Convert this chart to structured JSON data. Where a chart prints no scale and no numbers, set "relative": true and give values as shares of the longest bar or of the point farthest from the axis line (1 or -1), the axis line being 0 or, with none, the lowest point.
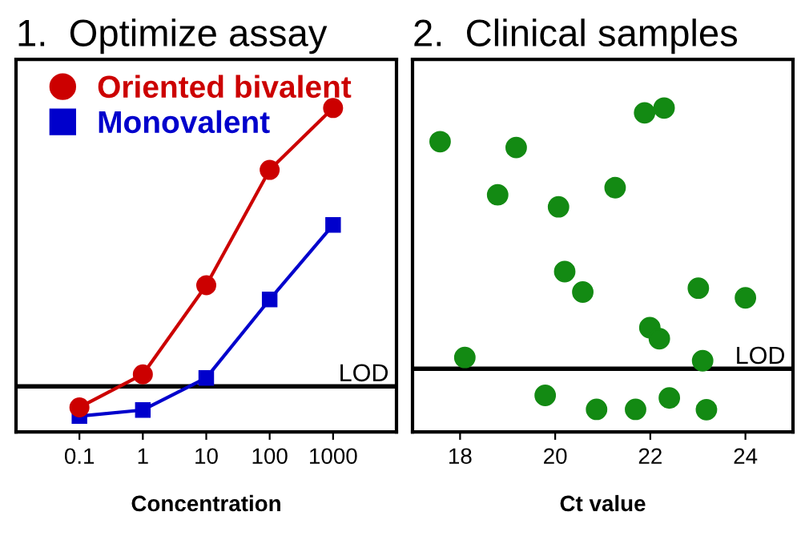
{
  "chart_data": [
    {
      "type": "line",
      "title": "1.  Optimize assay",
      "xlabel": "Concentration",
      "relative": true,
      "log": "x",
      "xlim": [
        0.01,
        10000
      ],
      "xticks": [
        0.1,
        1,
        10,
        100,
        1000
      ],
      "x": [
        0.1,
        1,
        10,
        100,
        1000
      ],
      "tick_labels": "x",
      "legend": "top left",
      "grid": false,
      "series": [
        {
          "name": "Oriented bivalent",
          "color": "#cc0000",
          "marker": "circle",
          "values": [
            0.076,
            0.178,
            0.453,
            0.809,
            1.0
          ]
        },
        {
          "name": "Monovalent",
          "color": "#0000cc",
          "marker": "square",
          "values": [
            0.049,
            0.068,
            0.167,
            0.409,
            0.639
          ]
        }
      ],
      "ref_lines": [
        {
          "axis": "y",
          "value": 0.141,
          "label": "LOD",
          "color": "#000000"
        }
      ]
    },
    {
      "type": "scatter",
      "title": "2.  Clinical samples",
      "xlabel": "Ct value",
      "relative": true,
      "xlim": [
        17,
        25
      ],
      "xticks": [
        18,
        20,
        22,
        24
      ],
      "tick_labels": "x",
      "grid": false,
      "marker": "circle",
      "series": [
        {
          "color": "#138a13",
          "x": [
            17.58,
            18.1,
            18.79,
            19.18,
            19.79,
            20.07,
            20.2,
            20.58,
            20.87,
            21.26,
            21.69,
            21.88,
            21.99,
            22.19,
            22.29,
            22.4,
            23.01,
            23.1,
            23.18,
            24.0
          ],
          "values": [
            0.896,
            0.23,
            0.732,
            0.878,
            0.113,
            0.695,
            0.495,
            0.432,
            0.07,
            0.754,
            0.07,
            0.985,
            0.322,
            0.288,
            1.0,
            0.105,
            0.444,
            0.22,
            0.069,
            0.414
          ]
        }
      ],
      "ref_lines": [
        {
          "axis": "y",
          "value": 0.195,
          "label": "LOD",
          "color": "#000000"
        }
      ]
    }
  ]
}
